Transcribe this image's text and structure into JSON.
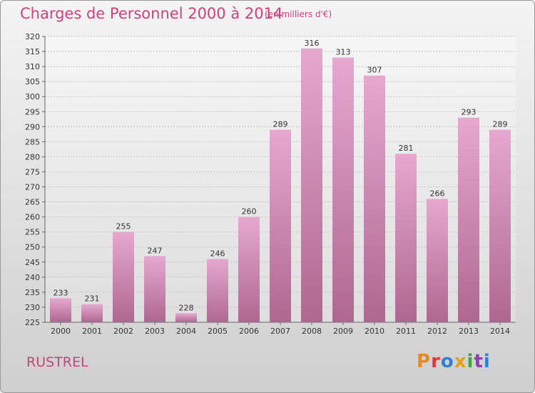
{
  "header": {
    "title": "Charges de Personnel 2000 à 2014",
    "subtitle": "(en milliers d'€)"
  },
  "commune": "RUSTREL",
  "logo": {
    "text": "Proxiti",
    "colors": [
      "#e08a2a",
      "#d63b3b",
      "#2f7fd6",
      "#e0a21a",
      "#3aa63a",
      "#8a3fb5",
      "#2f7fd6"
    ]
  },
  "colors": {
    "accent": "#d0407a",
    "bar_top": "#e4a4cc",
    "bar_bottom": "#b06b93"
  },
  "chart_data": {
    "type": "bar",
    "title": "Charges de Personnel 2000 à 2014",
    "subtitle": "(en milliers d'€)",
    "categories": [
      "2000",
      "2001",
      "2002",
      "2003",
      "2004",
      "2005",
      "2006",
      "2007",
      "2008",
      "2009",
      "2010",
      "2011",
      "2012",
      "2013",
      "2014"
    ],
    "values": [
      233,
      231,
      255,
      247,
      228,
      246,
      260,
      289,
      316,
      313,
      307,
      281,
      266,
      293,
      289
    ],
    "ylim": [
      225,
      320
    ],
    "yticks": [
      225,
      230,
      235,
      240,
      245,
      250,
      255,
      260,
      265,
      270,
      275,
      280,
      285,
      290,
      295,
      300,
      305,
      310,
      315,
      320
    ],
    "grid": true,
    "xlabel": "",
    "ylabel": ""
  }
}
